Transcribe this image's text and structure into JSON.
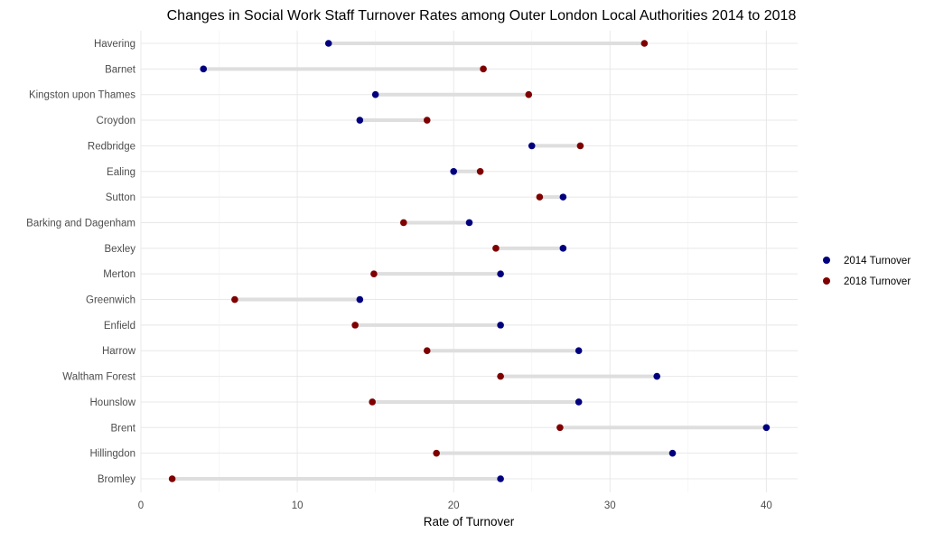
{
  "chart_data": {
    "type": "dumbbell",
    "title": "Changes in Social Work Staff Turnover Rates among Outer London Local Authorities 2014 to 2018",
    "xlabel": "Rate of Turnover",
    "ylabel": "",
    "xlim": [
      0,
      42
    ],
    "xticks": [
      0,
      10,
      20,
      30,
      40
    ],
    "grid": true,
    "legend_position": "right",
    "categories": [
      "Havering",
      "Barnet",
      "Kingston upon Thames",
      "Croydon",
      "Redbridge",
      "Ealing",
      "Sutton",
      "Barking and Dagenham",
      "Bexley",
      "Merton",
      "Greenwich",
      "Enfield",
      "Harrow",
      "Waltham Forest",
      "Hounslow",
      "Brent",
      "Hillingdon",
      "Bromley"
    ],
    "series": [
      {
        "name": "2014 Turnover",
        "color": "#00007f",
        "values": [
          12,
          4,
          15,
          14,
          25,
          20,
          27,
          21,
          27,
          23,
          14,
          23,
          28,
          33,
          28,
          40,
          34,
          23
        ]
      },
      {
        "name": "2018 Turnover",
        "color": "#7f0000",
        "values": [
          32.2,
          21.9,
          24.8,
          18.3,
          28.1,
          21.7,
          25.5,
          16.8,
          22.7,
          14.9,
          6,
          13.7,
          18.3,
          23,
          14.8,
          26.8,
          18.9,
          2
        ]
      }
    ],
    "segment_color": "#dedede"
  }
}
